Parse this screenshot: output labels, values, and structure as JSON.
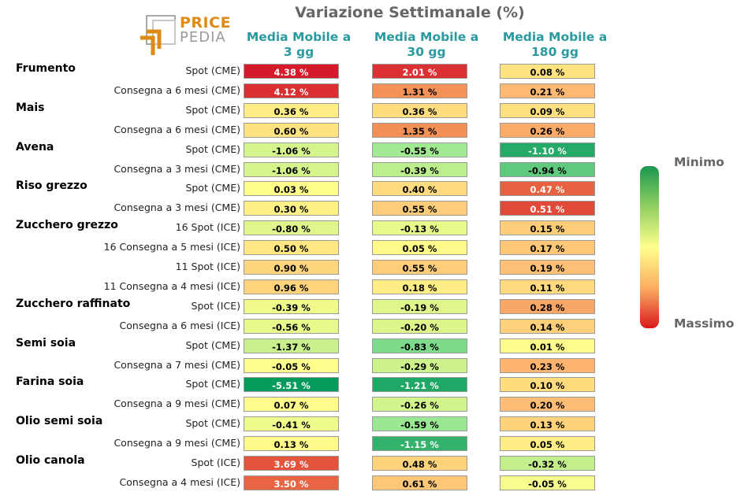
{
  "header": {
    "title": "Variazione Settimanale (%)",
    "logo_line1": "PRICE",
    "logo_line2": "PEDIA"
  },
  "legend": {
    "top_label": "Minimo",
    "bottom_label": "Massimo",
    "gradient_colors": [
      "#1a9850",
      "#91cf60",
      "#ffff8c",
      "#fdae61",
      "#d7191c"
    ]
  },
  "colors": {
    "header_text": "#2a9aa0"
  },
  "chart_data": {
    "type": "heatmap",
    "title": "Variazione Settimanale (%)",
    "columns": [
      "Media Mobile a 3 gg",
      "Media Mobile a 30 gg",
      "Media Mobile a 180 gg"
    ],
    "column_lines": [
      [
        "Media Mobile a",
        "3 gg"
      ],
      [
        "Media Mobile a",
        "30 gg"
      ],
      [
        "Media Mobile a",
        "180 gg"
      ]
    ],
    "rows": [
      {
        "group": "Frumento",
        "label": "Spot (CME)",
        "values": [
          4.38,
          2.01,
          0.08
        ],
        "display": [
          "4.38 %",
          "2.01 %",
          "0.08 %"
        ]
      },
      {
        "group": "",
        "label": "Consegna a 6 mesi (CME)",
        "values": [
          4.12,
          1.31,
          0.21
        ],
        "display": [
          "4.12 %",
          "1.31 %",
          "0.21 %"
        ]
      },
      {
        "group": "Mais",
        "label": "Spot (CME)",
        "values": [
          0.36,
          0.36,
          0.09
        ],
        "display": [
          "0.36 %",
          "0.36 %",
          "0.09 %"
        ]
      },
      {
        "group": "",
        "label": "Consegna a 6 mesi (CME)",
        "values": [
          0.6,
          1.35,
          0.26
        ],
        "display": [
          "0.60 %",
          "1.35 %",
          "0.26 %"
        ]
      },
      {
        "group": "Avena",
        "label": "Spot (CME)",
        "values": [
          -1.06,
          -0.55,
          -1.1
        ],
        "display": [
          "-1.06 %",
          "-0.55 %",
          "-1.10 %"
        ]
      },
      {
        "group": "",
        "label": "Consegna a 3 mesi (CME)",
        "values": [
          -1.06,
          -0.39,
          -0.94
        ],
        "display": [
          "-1.06 %",
          "-0.39 %",
          "-0.94 %"
        ]
      },
      {
        "group": "Riso grezzo",
        "label": "Spot (CME)",
        "values": [
          0.03,
          0.4,
          0.47
        ],
        "display": [
          "0.03 %",
          "0.40 %",
          "0.47 %"
        ]
      },
      {
        "group": "",
        "label": "Consegna a 3 mesi (CME)",
        "values": [
          0.3,
          0.55,
          0.51
        ],
        "display": [
          "0.30 %",
          "0.55 %",
          "0.51 %"
        ]
      },
      {
        "group": "Zucchero grezzo",
        "label": "16 Spot (ICE)",
        "values": [
          -0.8,
          -0.13,
          0.15
        ],
        "display": [
          "-0.80 %",
          "-0.13 %",
          "0.15 %"
        ]
      },
      {
        "group": "",
        "label": "16 Consegna a 5 mesi (ICE)",
        "values": [
          0.5,
          0.05,
          0.17
        ],
        "display": [
          "0.50 %",
          "0.05 %",
          "0.17 %"
        ]
      },
      {
        "group": "",
        "label": "11 Spot (ICE)",
        "values": [
          0.9,
          0.55,
          0.19
        ],
        "display": [
          "0.90 %",
          "0.55 %",
          "0.19 %"
        ]
      },
      {
        "group": "",
        "label": "11 Consegna a 4 mesi (ICE)",
        "values": [
          0.96,
          0.18,
          0.11
        ],
        "display": [
          "0.96 %",
          "0.18 %",
          "0.11 %"
        ]
      },
      {
        "group": "Zucchero raffinato",
        "label": "Spot (ICE)",
        "values": [
          -0.39,
          -0.19,
          0.28
        ],
        "display": [
          "-0.39 %",
          "-0.19 %",
          "0.28 %"
        ]
      },
      {
        "group": "",
        "label": "Consegna a 6 mesi (ICE)",
        "values": [
          -0.56,
          -0.2,
          0.14
        ],
        "display": [
          "-0.56 %",
          "-0.20 %",
          "0.14 %"
        ]
      },
      {
        "group": "Semi soia",
        "label": "Spot (CME)",
        "values": [
          -1.37,
          -0.83,
          0.01
        ],
        "display": [
          "-1.37 %",
          "-0.83 %",
          "0.01 %"
        ]
      },
      {
        "group": "",
        "label": "Consegna a 7 mesi (CME)",
        "values": [
          -0.05,
          -0.29,
          0.23
        ],
        "display": [
          "-0.05 %",
          "-0.29 %",
          "0.23 %"
        ]
      },
      {
        "group": "Farina soia",
        "label": "Spot (CME)",
        "values": [
          -5.51,
          -1.21,
          0.1
        ],
        "display": [
          "-5.51 %",
          "-1.21 %",
          "0.10 %"
        ]
      },
      {
        "group": "",
        "label": "Consegna a 9 mesi (CME)",
        "values": [
          0.07,
          -0.26,
          0.2
        ],
        "display": [
          "0.07 %",
          "-0.26 %",
          "0.20 %"
        ]
      },
      {
        "group": "Olio semi soia",
        "label": "Spot (CME)",
        "values": [
          -0.41,
          -0.59,
          0.13
        ],
        "display": [
          "-0.41 %",
          "-0.59 %",
          "0.13 %"
        ]
      },
      {
        "group": "",
        "label": "Consegna a 9 mesi (CME)",
        "values": [
          0.13,
          -1.15,
          0.05
        ],
        "display": [
          "0.13 %",
          "-1.15 %",
          "0.05 %"
        ]
      },
      {
        "group": "Olio canola",
        "label": "Spot (ICE)",
        "values": [
          3.69,
          0.48,
          -0.32
        ],
        "display": [
          "3.69 %",
          "0.48 %",
          "-0.32 %"
        ]
      },
      {
        "group": "",
        "label": "Consegna a 4 mesi (ICE)",
        "values": [
          3.5,
          0.61,
          -0.05
        ],
        "display": [
          "3.50 %",
          "0.61 %",
          "-0.05 %"
        ]
      }
    ]
  }
}
